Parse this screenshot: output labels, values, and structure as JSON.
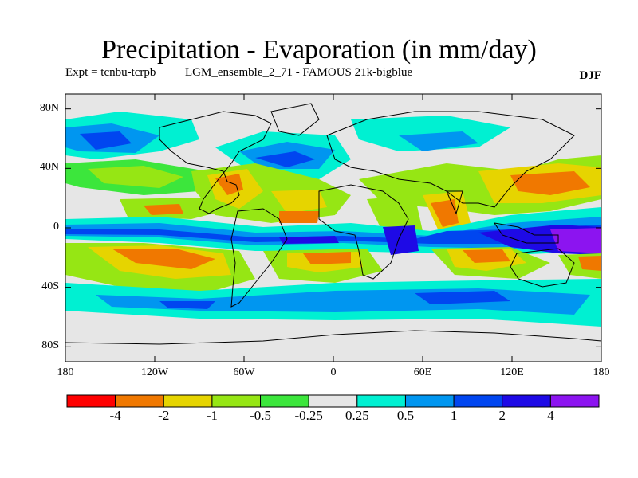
{
  "title": "Precipitation - Evaporation (in mm/day)",
  "subtitle_left": "Expt = tcnbu-tcrpb",
  "subtitle_mid": "LGM_ensemble_2_71 - FAMOUS 21k-bigblue",
  "season": "DJF",
  "lat_ticks": [
    {
      "label": "80N",
      "lat": 80
    },
    {
      "label": "40N",
      "lat": 40
    },
    {
      "label": "0",
      "lat": 0
    },
    {
      "label": "40S",
      "lat": -40
    },
    {
      "label": "80S",
      "lat": -80
    }
  ],
  "lon_ticks": [
    {
      "label": "180",
      "lon": -180
    },
    {
      "label": "120W",
      "lon": -120
    },
    {
      "label": "60W",
      "lon": -60
    },
    {
      "label": "0",
      "lon": 0
    },
    {
      "label": "60E",
      "lon": 60
    },
    {
      "label": "120E",
      "lon": 120
    },
    {
      "label": "180",
      "lon": 180
    }
  ],
  "colorbar": {
    "colors": [
      "#ff0000",
      "#f07800",
      "#e6d400",
      "#96e614",
      "#3ce63c",
      "#e6e6e6",
      "#00f0d2",
      "#0096f0",
      "#0046f0",
      "#1e0ae6",
      "#8c14f0"
    ],
    "labels": [
      "-4",
      "-2",
      "-1",
      "-0.5",
      "-0.25",
      "0.25",
      "0.5",
      "1",
      "2",
      "4"
    ]
  },
  "map_layers": [
    {
      "class": "strong-drying",
      "color": "#f07800"
    },
    {
      "class": "drying",
      "color": "#e6d400"
    },
    {
      "class": "slight-drying",
      "color": "#96e614"
    },
    {
      "class": "small-negative",
      "color": "#3ce63c"
    },
    {
      "class": "near-zero",
      "color": "#e6e6e6"
    },
    {
      "class": "small-positive",
      "color": "#00f0d2"
    },
    {
      "class": "wetting",
      "color": "#0096f0"
    },
    {
      "class": "strong-wetting",
      "color": "#0046f0"
    },
    {
      "class": "very-strong-wetting",
      "color": "#1e0ae6"
    },
    {
      "class": "extreme-wetting",
      "color": "#8c14f0"
    }
  ]
}
